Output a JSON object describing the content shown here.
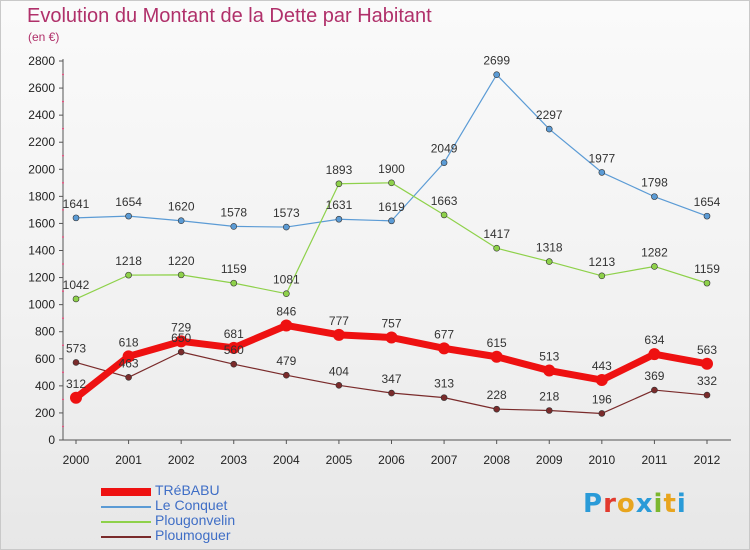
{
  "title": "Evolution du Montant de la Dette par Habitant",
  "subtitle": "(en €)",
  "logo": {
    "text": "Proxiti",
    "colors": [
      "#2a9bd8",
      "#e23a2e",
      "#e8a51e",
      "#2a9bd8",
      "#7cb72e",
      "#e8a51e",
      "#2a9bd8"
    ]
  },
  "chart_data": {
    "type": "line",
    "x": [
      "2000",
      "2001",
      "2002",
      "2003",
      "2004",
      "2005",
      "2006",
      "2007",
      "2008",
      "2009",
      "2010",
      "2011",
      "2012"
    ],
    "ylim": [
      0,
      2800
    ],
    "yticks": [
      0,
      200,
      400,
      600,
      800,
      1000,
      1200,
      1400,
      1600,
      1800,
      2000,
      2200,
      2400,
      2600,
      2800
    ],
    "grid": false,
    "legend": "bottom-left",
    "series": [
      {
        "name": "Le Conquet",
        "color": "#5b9bd5",
        "values": [
          1641,
          1654,
          1620,
          1578,
          1573,
          1631,
          1619,
          2049,
          2699,
          2297,
          1977,
          1798,
          1654
        ]
      },
      {
        "name": "Plougonvelin",
        "color": "#8ed14a",
        "values": [
          1042,
          1218,
          1220,
          1159,
          1081,
          1893,
          1900,
          1663,
          1417,
          1318,
          1213,
          1282,
          1159
        ]
      },
      {
        "name": "Ploumoguer",
        "color": "#7a2b2b",
        "values": [
          573,
          463,
          650,
          560,
          479,
          404,
          347,
          313,
          228,
          218,
          196,
          369,
          332
        ]
      },
      {
        "name": "TRéBABU",
        "color": "#ee1111",
        "values": [
          312,
          618,
          729,
          681,
          846,
          777,
          757,
          677,
          615,
          513,
          443,
          634,
          563
        ]
      }
    ],
    "label_offsets": {
      "TRéBABU": [
        -1,
        -1,
        -1,
        -1,
        -1,
        -1,
        -1,
        -1,
        -1,
        -1,
        -1,
        -1,
        -1
      ]
    }
  },
  "legend_order": [
    "TRéBABU",
    "Le Conquet",
    "Plougonvelin",
    "Ploumoguer"
  ]
}
